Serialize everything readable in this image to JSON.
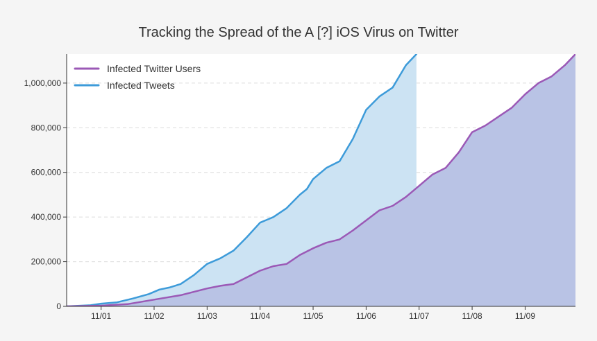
{
  "chart_data": {
    "type": "area",
    "title": "Tracking the Spread of the A [?] iOS Virus on Twitter",
    "xlabel": "",
    "ylabel": "",
    "x_ticks": [
      "11/01",
      "11/02",
      "11/03",
      "11/04",
      "11/05",
      "11/06",
      "11/07",
      "11/08",
      "11/09"
    ],
    "x_range": [
      0.35,
      9.95
    ],
    "ylim": [
      0,
      1130000
    ],
    "y_ticks": [
      0,
      200000,
      400000,
      600000,
      800000,
      1000000
    ],
    "y_tick_labels": [
      "0",
      "200,000",
      "400,000",
      "600,000",
      "800,000",
      "1,000,000"
    ],
    "grid": "horizontal-dashed",
    "legend_position": "top-left",
    "series": [
      {
        "name": "Infected Tweets",
        "color": "#3d9bd9",
        "fill": "#cce3f3",
        "x": [
          0.35,
          0.8,
          1.0,
          1.3,
          1.6,
          1.9,
          2.1,
          2.3,
          2.5,
          2.75,
          3.0,
          3.25,
          3.5,
          3.75,
          4.0,
          4.25,
          4.5,
          4.75,
          4.88,
          5.0,
          5.25,
          5.5,
          5.75,
          6.0,
          6.25,
          6.5,
          6.75,
          6.95
        ],
        "y": [
          0,
          5000,
          12000,
          18000,
          35000,
          55000,
          75000,
          85000,
          100000,
          140000,
          190000,
          215000,
          250000,
          310000,
          375000,
          400000,
          440000,
          500000,
          525000,
          570000,
          620000,
          650000,
          750000,
          880000,
          940000,
          980000,
          1080000,
          1130000
        ]
      },
      {
        "name": "Infected Twitter Users",
        "color": "#9b59b6",
        "fill": "#b9c3e5",
        "x": [
          0.35,
          1.0,
          1.5,
          2.0,
          2.5,
          3.0,
          3.25,
          3.5,
          4.0,
          4.25,
          4.5,
          4.75,
          5.0,
          5.25,
          5.5,
          5.75,
          6.0,
          6.25,
          6.5,
          6.75,
          7.0,
          7.25,
          7.5,
          7.75,
          8.0,
          8.25,
          8.5,
          8.75,
          9.0,
          9.25,
          9.5,
          9.75,
          9.95
        ],
        "y": [
          0,
          3000,
          10000,
          30000,
          50000,
          80000,
          92000,
          100000,
          160000,
          180000,
          190000,
          230000,
          260000,
          285000,
          300000,
          340000,
          385000,
          430000,
          450000,
          490000,
          540000,
          590000,
          620000,
          690000,
          780000,
          810000,
          850000,
          890000,
          950000,
          1000000,
          1030000,
          1080000,
          1130000
        ]
      }
    ],
    "legend_order": [
      "Infected Twitter Users",
      "Infected Tweets"
    ]
  }
}
